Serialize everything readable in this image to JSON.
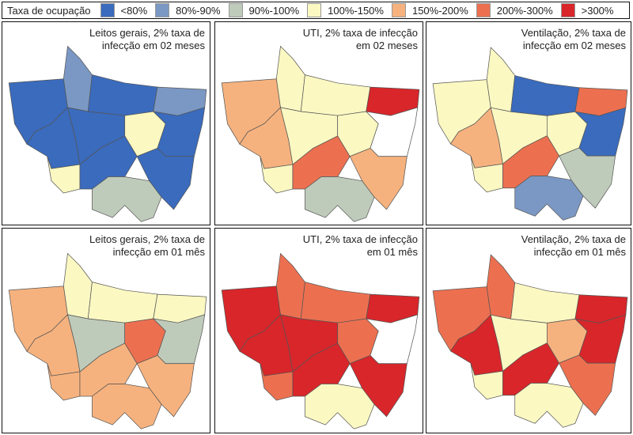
{
  "legend": {
    "title": "Taxa de ocupação",
    "classes": [
      {
        "label": "<80%",
        "color": "#3a6bbd"
      },
      {
        "label": "80%-90%",
        "color": "#7b98c4"
      },
      {
        "label": "90%-100%",
        "color": "#bfcbba"
      },
      {
        "label": "100%-150%",
        "color": "#fbf8c2"
      },
      {
        "label": "150%-200%",
        "color": "#f6b27e"
      },
      {
        "label": "200%-300%",
        "color": "#ec7050"
      },
      {
        "label": ">300%",
        "color": "#d8262a"
      }
    ],
    "no_data_color": "#ffffff"
  },
  "panels": [
    {
      "line1": "Leitos gerais, 2% taxa de",
      "line2": "infecção em 02 meses",
      "regions": [
        0,
        1,
        0,
        1,
        0,
        0,
        3,
        0,
        3,
        0,
        0,
        2
      ]
    },
    {
      "line1": "UTI, 2% taxa de infecção",
      "line2": "em 02 meses",
      "regions": [
        4,
        3,
        3,
        6,
        4,
        3,
        3,
        -1,
        3,
        5,
        4,
        2
      ]
    },
    {
      "line1": "Ventilação, 2% taxa de",
      "line2": "infecção em 02 meses",
      "regions": [
        3,
        3,
        0,
        5,
        4,
        3,
        3,
        0,
        3,
        5,
        2,
        1
      ]
    },
    {
      "line1": "Leitos gerais, 2% taxa de",
      "line2": "infecção em 01 mês",
      "regions": [
        4,
        3,
        3,
        3,
        4,
        2,
        5,
        2,
        4,
        4,
        4,
        4
      ]
    },
    {
      "line1": "UTI, 2% taxa de infecção",
      "line2": "em 01 mês",
      "regions": [
        6,
        5,
        5,
        6,
        6,
        6,
        5,
        -1,
        5,
        6,
        6,
        3
      ]
    },
    {
      "line1": "Ventilação, 2% taxa de",
      "line2": "infecção em 01 mês",
      "regions": [
        5,
        5,
        3,
        6,
        6,
        3,
        4,
        6,
        3,
        6,
        5,
        3
      ]
    }
  ]
}
